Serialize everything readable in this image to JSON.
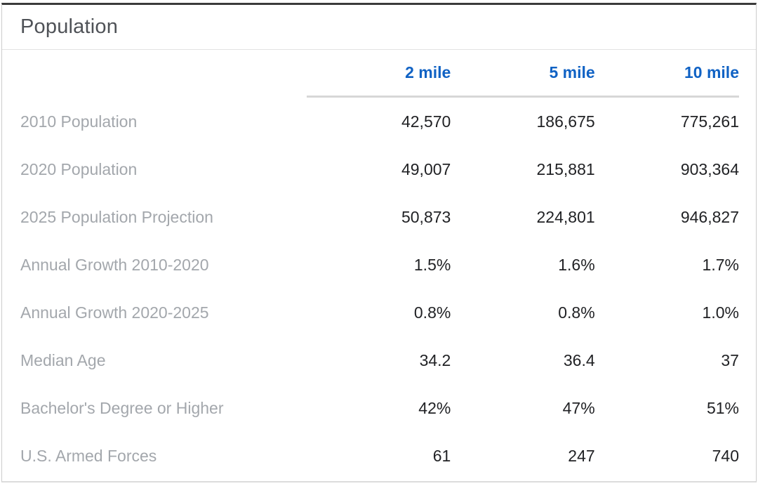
{
  "panel": {
    "title": "Population"
  },
  "table": {
    "column_headers": [
      "2 mile",
      "5 mile",
      "10 mile"
    ],
    "rows": [
      {
        "label": "2010 Population",
        "values": [
          "42,570",
          "186,675",
          "775,261"
        ]
      },
      {
        "label": "2020 Population",
        "values": [
          "49,007",
          "215,881",
          "903,364"
        ]
      },
      {
        "label": "2025 Population Projection",
        "values": [
          "50,873",
          "224,801",
          "946,827"
        ]
      },
      {
        "label": "Annual Growth 2010-2020",
        "values": [
          "1.5%",
          "1.6%",
          "1.7%"
        ]
      },
      {
        "label": "Annual Growth 2020-2025",
        "values": [
          "0.8%",
          "0.8%",
          "1.0%"
        ]
      },
      {
        "label": "Median Age",
        "values": [
          "34.2",
          "36.4",
          "37"
        ]
      },
      {
        "label": "Bachelor's Degree or Higher",
        "values": [
          "42%",
          "47%",
          "51%"
        ]
      },
      {
        "label": "U.S. Armed Forces",
        "values": [
          "61",
          "247",
          "740"
        ]
      }
    ]
  },
  "colors": {
    "header_blue": "#1062c4",
    "label_gray": "#a3a7ac",
    "value_black": "#212225",
    "title_gray": "#4f5257",
    "top_accent": "#3b3b3b",
    "card_border": "#cccccc",
    "header_underline": "#d7d7d7"
  }
}
